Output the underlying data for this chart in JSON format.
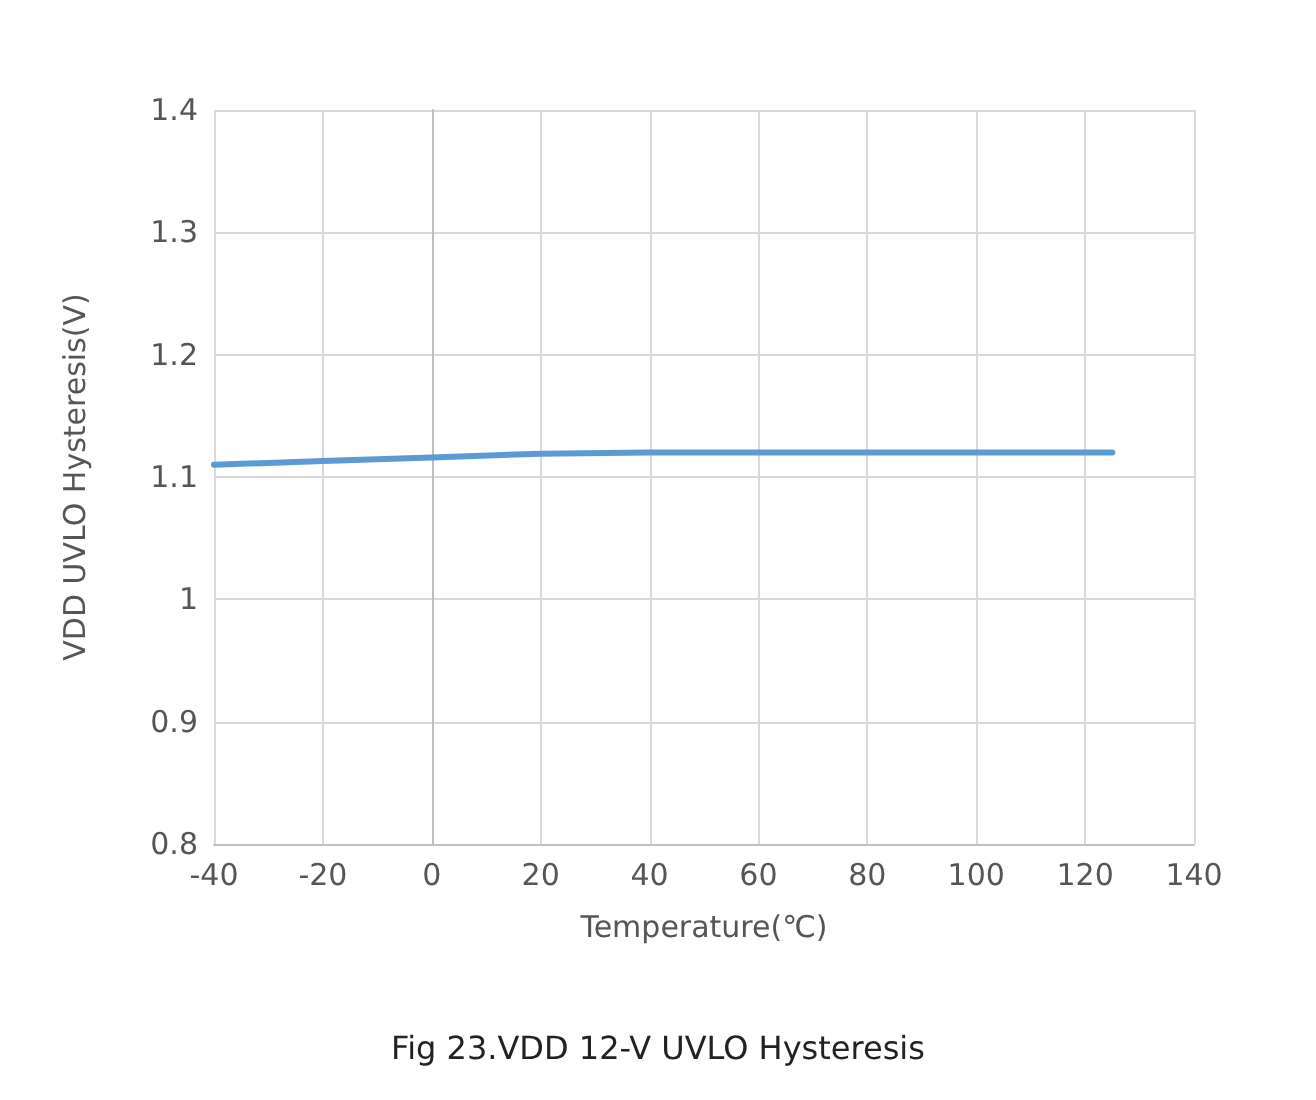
{
  "chart_data": {
    "type": "line",
    "xlabel": "Temperature(℃)",
    "ylabel": "VDD UVLO Hysteresis(V)",
    "annotations": [
      "Fig 23.VDD 12-V UVLO Hysteresis"
    ],
    "x": [
      -40,
      -20,
      0,
      20,
      40,
      60,
      80,
      100,
      125
    ],
    "series": [
      {
        "color": "#5b9bd5",
        "values": [
          1.11,
          1.113,
          1.116,
          1.119,
          1.12,
          1.12,
          1.12,
          1.12,
          1.12
        ]
      }
    ],
    "xlim": [
      -40,
      140
    ],
    "xticks": [
      -40,
      -20,
      0,
      20,
      40,
      60,
      80,
      100,
      120,
      140
    ],
    "ylim": [
      0.8,
      1.4
    ],
    "yticks": [
      0.8,
      0.9,
      1,
      1.1,
      1.2,
      1.3,
      1.4
    ],
    "grid": true,
    "marker": "none",
    "line_style": "solid"
  }
}
